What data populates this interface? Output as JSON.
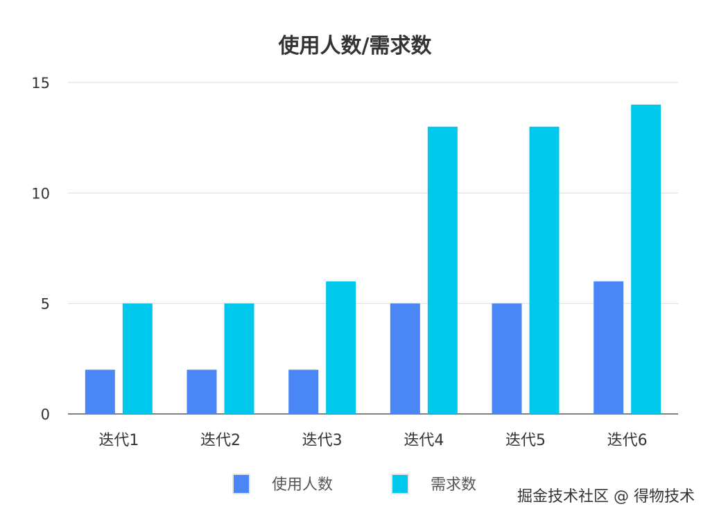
{
  "chart_data": {
    "type": "bar",
    "title": "使用人数/需求数",
    "xlabel": "",
    "ylabel": "",
    "categories": [
      "迭代1",
      "迭代2",
      "迭代3",
      "迭代4",
      "迭代5",
      "迭代6"
    ],
    "series": [
      {
        "name": "使用人数",
        "color": "#4a86f5",
        "values": [
          2,
          2,
          2,
          5,
          5,
          6
        ]
      },
      {
        "name": "需求数",
        "color": "#00c8ec",
        "values": [
          5,
          5,
          6,
          13,
          13,
          14
        ]
      }
    ],
    "ylim": [
      0,
      15
    ],
    "yticks": [
      0,
      5,
      10,
      15
    ],
    "grid": true,
    "legend": "bottom"
  },
  "watermark": "掘金技术社区 @ 得物技术"
}
